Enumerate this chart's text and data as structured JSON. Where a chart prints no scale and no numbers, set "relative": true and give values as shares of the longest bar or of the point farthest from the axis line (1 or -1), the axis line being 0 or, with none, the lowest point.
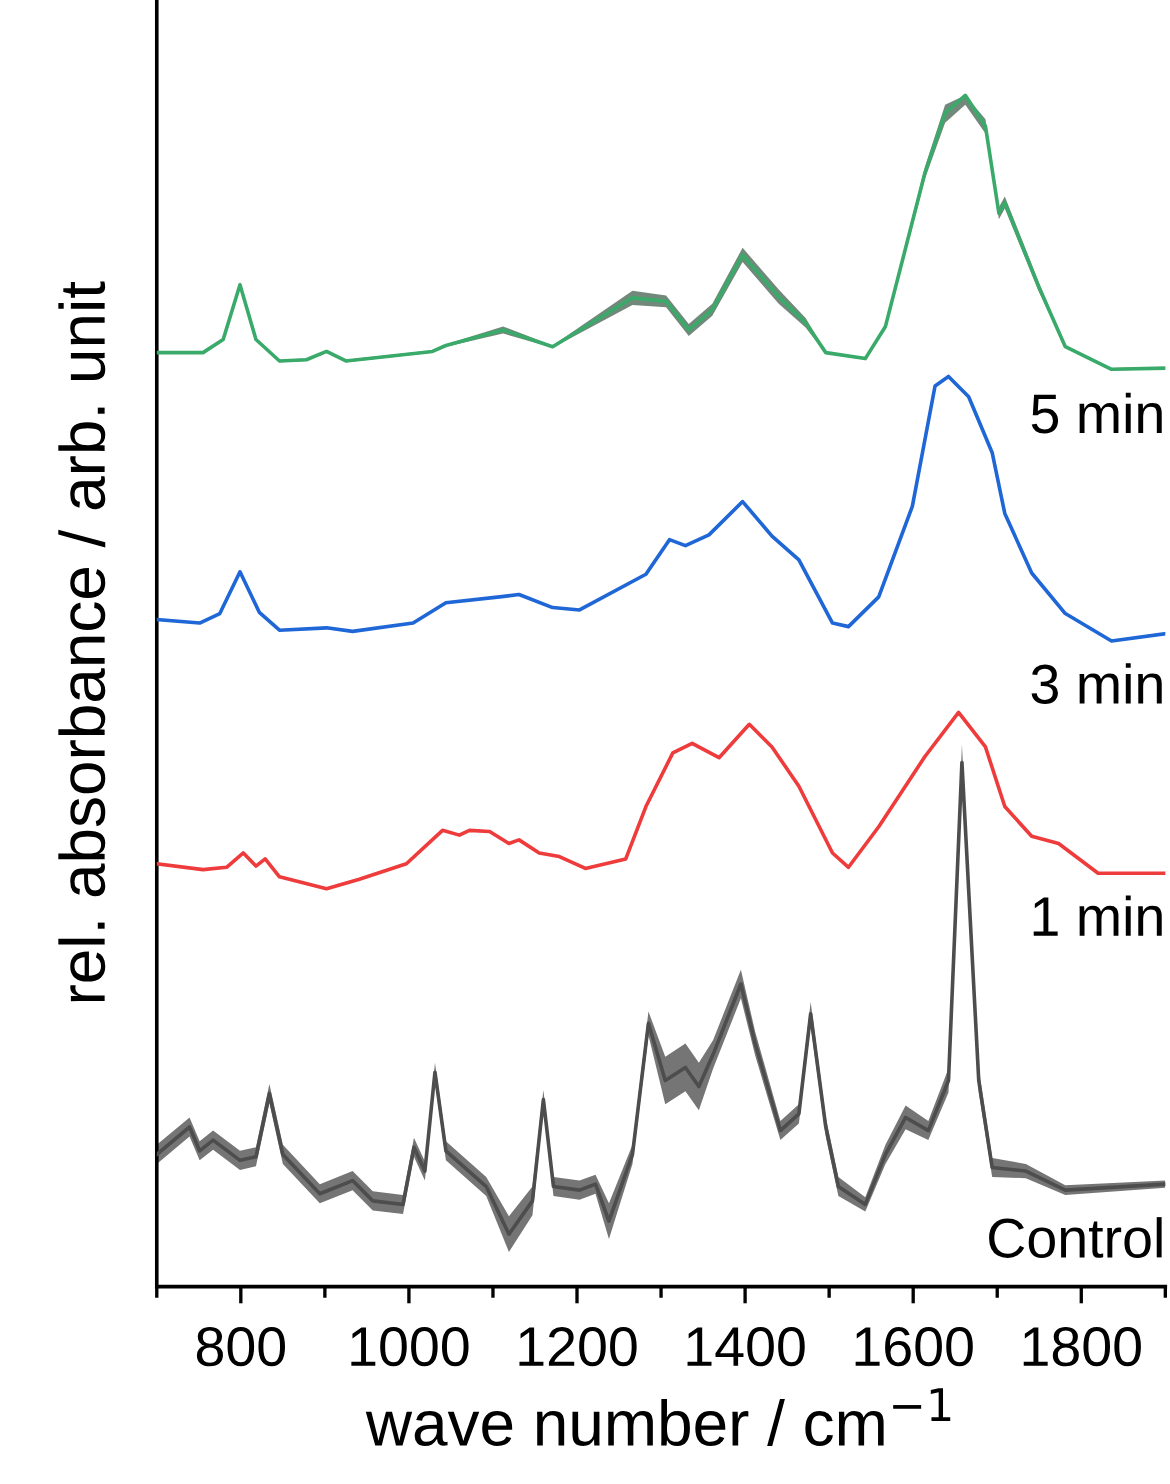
{
  "chart_data": {
    "type": "line",
    "relative": true,
    "xlabel": "wave number / cm$^{−1}$",
    "ylabel": "rel. absorbance / arb. unit",
    "xlim": [
      700,
      1900
    ],
    "xticks": [
      {
        "value": 700,
        "label": null
      },
      800,
      {
        "value": 900,
        "label": null
      },
      1000,
      {
        "value": 1100,
        "label": null
      },
      1200,
      {
        "value": 1300,
        "label": null
      },
      1400,
      {
        "value": 1500,
        "label": null
      },
      1600,
      {
        "value": 1700,
        "label": null
      },
      1800,
      {
        "value": 1900,
        "label": null
      }
    ],
    "grid": false,
    "legend": false,
    "marker": "none",
    "line_style": "solid",
    "series": [
      {
        "name": "5 min",
        "color": "#3aaa6a",
        "x": [
          700,
          755,
          779,
          799,
          818,
          846,
          878,
          902,
          925,
          1028,
          1044,
          1112,
          1171,
          1266,
          1306,
          1333,
          1361,
          1397,
          1440,
          1472,
          1496,
          1543,
          1567,
          1614,
          1638,
          1662,
          1686,
          1702,
          1709,
          1749,
          1781,
          1836,
          1900
        ],
        "values": [
          0.784,
          0.784,
          0.795,
          0.841,
          0.795,
          0.777,
          0.778,
          0.785,
          0.777,
          0.785,
          0.79,
          0.803,
          0.789,
          0.83,
          0.827,
          0.803,
          0.82,
          0.866,
          0.831,
          0.809,
          0.784,
          0.779,
          0.806,
          0.935,
          0.985,
          1.0,
          0.974,
          0.901,
          0.91,
          0.84,
          0.789,
          0.77,
          0.771
        ],
        "lower": [
          0.783,
          0.783,
          0.794,
          0.839,
          0.794,
          0.776,
          0.777,
          0.784,
          0.776,
          0.784,
          0.789,
          0.8,
          0.788,
          0.824,
          0.822,
          0.798,
          0.815,
          0.86,
          0.825,
          0.805,
          0.783,
          0.778,
          0.804,
          0.93,
          0.977,
          0.992,
          0.968,
          0.896,
          0.905,
          0.836,
          0.788,
          0.769,
          0.77
        ],
        "upper": [
          0.785,
          0.785,
          0.796,
          0.843,
          0.796,
          0.778,
          0.779,
          0.786,
          0.778,
          0.786,
          0.791,
          0.806,
          0.79,
          0.836,
          0.832,
          0.808,
          0.825,
          0.872,
          0.837,
          0.813,
          0.785,
          0.78,
          0.808,
          0.94,
          0.992,
          1.0,
          0.98,
          0.906,
          0.915,
          0.844,
          0.79,
          0.771,
          0.772
        ]
      },
      {
        "name": "3 min",
        "color": "#1f66d6",
        "x": [
          700,
          751,
          775,
          799,
          822,
          846,
          902,
          933,
          1005,
          1044,
          1108,
          1131,
          1171,
          1203,
          1282,
          1310,
          1329,
          1357,
          1397,
          1432,
          1464,
          1504,
          1523,
          1559,
          1599,
          1626,
          1642,
          1666,
          1694,
          1709,
          1741,
          1781,
          1836,
          1900
        ],
        "values": [
          0.56,
          0.557,
          0.565,
          0.6,
          0.566,
          0.551,
          0.553,
          0.55,
          0.557,
          0.574,
          0.579,
          0.581,
          0.57,
          0.568,
          0.598,
          0.627,
          0.622,
          0.631,
          0.659,
          0.63,
          0.61,
          0.557,
          0.554,
          0.579,
          0.655,
          0.756,
          0.764,
          0.747,
          0.7,
          0.649,
          0.599,
          0.565,
          0.542,
          0.548
        ]
      },
      {
        "name": "1 min",
        "color": "#ee3b3b",
        "x": [
          700,
          755,
          783,
          803,
          818,
          829,
          846,
          902,
          941,
          997,
          1040,
          1060,
          1072,
          1096,
          1119,
          1131,
          1155,
          1179,
          1210,
          1258,
          1282,
          1314,
          1337,
          1369,
          1405,
          1432,
          1464,
          1504,
          1523,
          1559,
          1614,
          1654,
          1686,
          1709,
          1741,
          1773,
          1820,
          1900
        ],
        "values": [
          0.355,
          0.35,
          0.352,
          0.364,
          0.353,
          0.359,
          0.344,
          0.334,
          0.342,
          0.355,
          0.383,
          0.379,
          0.383,
          0.382,
          0.372,
          0.375,
          0.364,
          0.361,
          0.351,
          0.359,
          0.403,
          0.448,
          0.456,
          0.444,
          0.472,
          0.453,
          0.42,
          0.364,
          0.352,
          0.386,
          0.445,
          0.482,
          0.453,
          0.403,
          0.378,
          0.372,
          0.347,
          0.347
        ]
      },
      {
        "name": "Control",
        "color": "#4d4d4d",
        "x": [
          700,
          739,
          751,
          767,
          799,
          818,
          834,
          850,
          894,
          933,
          957,
          993,
          1006,
          1019,
          1031,
          1044,
          1092,
          1119,
          1147,
          1160,
          1172,
          1203,
          1222,
          1238,
          1266,
          1285,
          1305,
          1329,
          1345,
          1362,
          1395,
          1412,
          1442,
          1464,
          1478,
          1496,
          1511,
          1543,
          1567,
          1591,
          1618,
          1642,
          1658,
          1678,
          1694,
          1734,
          1781,
          1900
        ],
        "values": [
          0.111,
          0.134,
          0.114,
          0.123,
          0.106,
          0.109,
          0.162,
          0.111,
          0.078,
          0.089,
          0.072,
          0.069,
          0.117,
          0.097,
          0.18,
          0.114,
          0.084,
          0.044,
          0.072,
          0.157,
          0.084,
          0.081,
          0.086,
          0.055,
          0.111,
          0.221,
          0.173,
          0.184,
          0.168,
          0.195,
          0.254,
          0.204,
          0.131,
          0.145,
          0.229,
          0.134,
          0.084,
          0.069,
          0.111,
          0.142,
          0.131,
          0.173,
          0.44,
          0.173,
          0.1,
          0.097,
          0.081,
          0.086
        ],
        "lower": [
          0.103,
          0.126,
          0.106,
          0.115,
          0.098,
          0.101,
          0.154,
          0.103,
          0.07,
          0.081,
          0.064,
          0.061,
          0.109,
          0.089,
          0.172,
          0.106,
          0.076,
          0.029,
          0.06,
          0.149,
          0.076,
          0.073,
          0.078,
          0.04,
          0.103,
          0.211,
          0.153,
          0.164,
          0.148,
          0.183,
          0.242,
          0.194,
          0.123,
          0.137,
          0.219,
          0.126,
          0.076,
          0.063,
          0.103,
          0.132,
          0.123,
          0.163,
          0.425,
          0.163,
          0.092,
          0.091,
          0.077,
          0.083
        ],
        "upper": [
          0.119,
          0.142,
          0.122,
          0.131,
          0.114,
          0.117,
          0.17,
          0.119,
          0.086,
          0.097,
          0.08,
          0.077,
          0.125,
          0.105,
          0.188,
          0.122,
          0.092,
          0.059,
          0.084,
          0.165,
          0.092,
          0.089,
          0.094,
          0.07,
          0.119,
          0.231,
          0.193,
          0.204,
          0.188,
          0.207,
          0.266,
          0.214,
          0.139,
          0.153,
          0.239,
          0.142,
          0.092,
          0.075,
          0.119,
          0.152,
          0.139,
          0.183,
          0.455,
          0.183,
          0.108,
          0.103,
          0.085,
          0.089
        ]
      }
    ]
  }
}
